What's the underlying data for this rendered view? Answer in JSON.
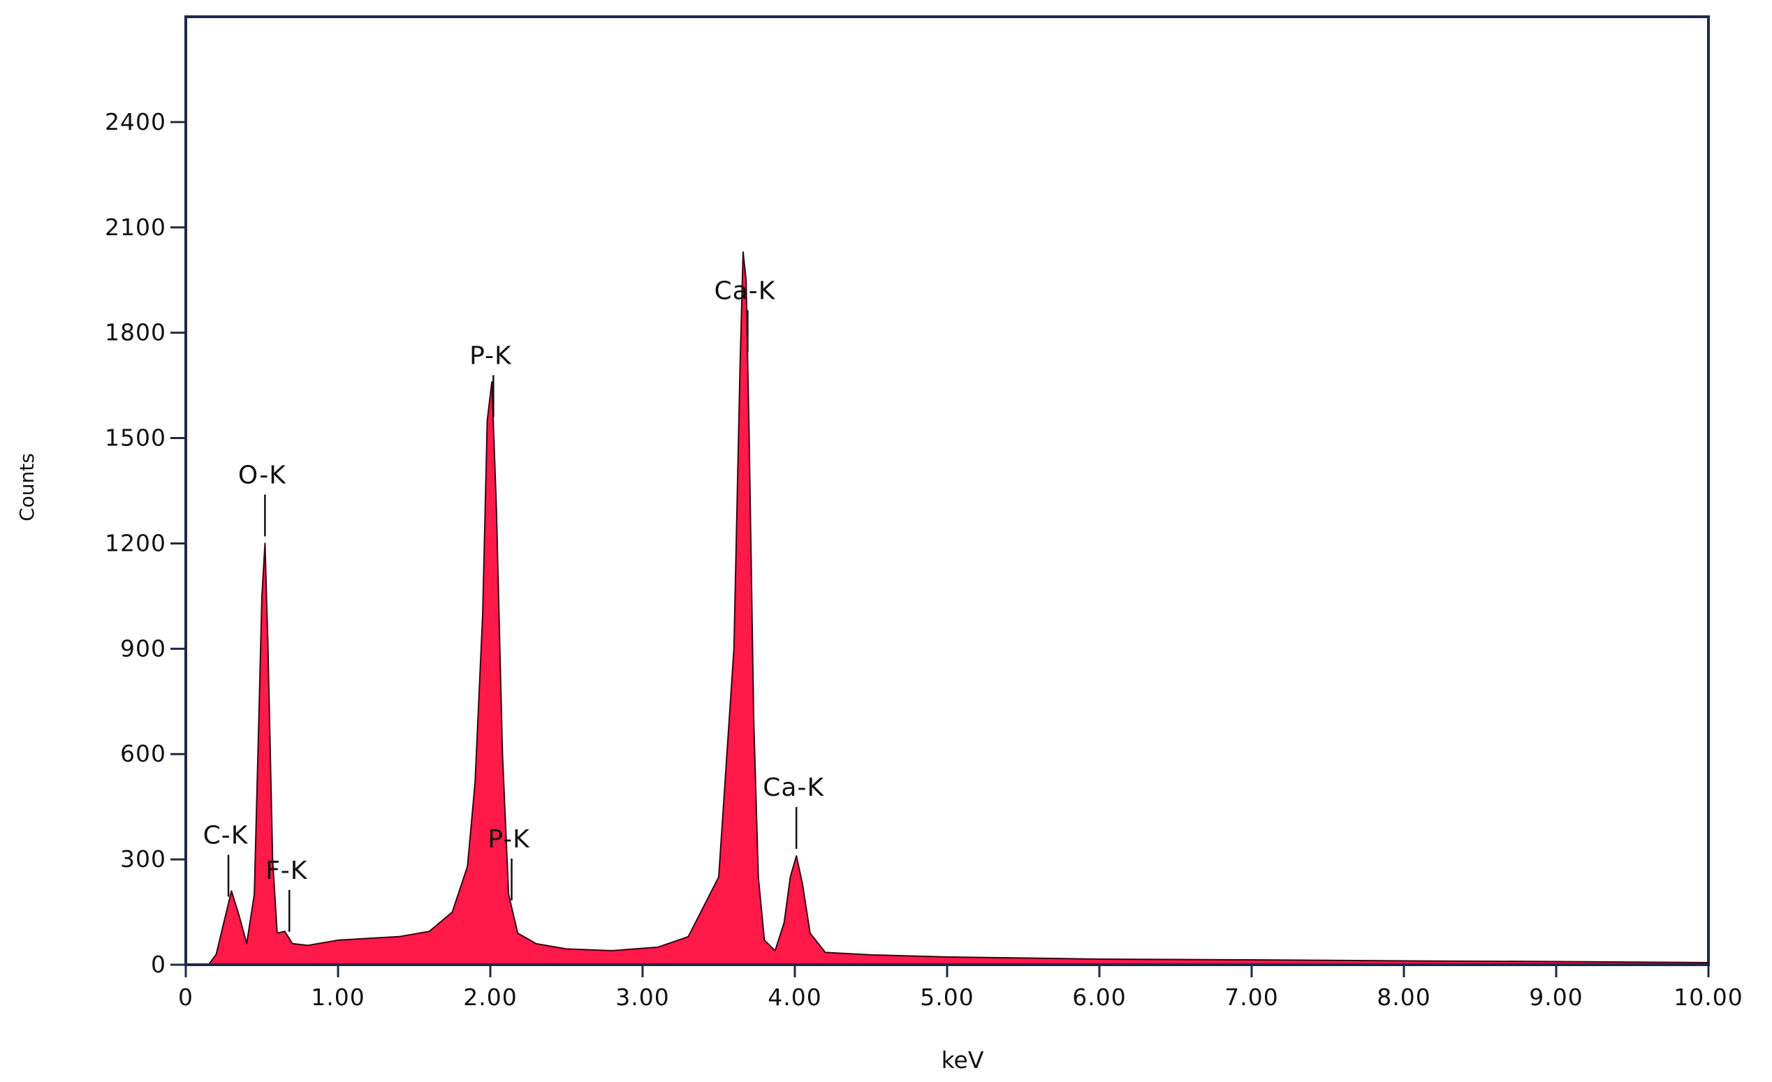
{
  "chart_data": {
    "type": "area",
    "title": "",
    "xlabel": "keV",
    "ylabel": "Counts",
    "xlim": [
      0,
      10
    ],
    "ylim": [
      0,
      2700
    ],
    "x_ticks": [
      "0",
      "1.00",
      "2.00",
      "3.00",
      "4.00",
      "5.00",
      "6.00",
      "7.00",
      "8.00",
      "9.00",
      "10.00"
    ],
    "y_ticks": [
      "0",
      "300",
      "600",
      "900",
      "1200",
      "1500",
      "1800",
      "2100",
      "2400"
    ],
    "grid": false,
    "legend": "none",
    "series": [
      {
        "color": "#ff1a4a",
        "x": [
          0.15,
          0.2,
          0.25,
          0.3,
          0.35,
          0.4,
          0.45,
          0.48,
          0.5,
          0.52,
          0.54,
          0.57,
          0.6,
          0.65,
          0.7,
          0.8,
          1.0,
          1.2,
          1.4,
          1.6,
          1.75,
          1.85,
          1.9,
          1.95,
          1.98,
          2.01,
          2.04,
          2.08,
          2.12,
          2.18,
          2.3,
          2.5,
          2.8,
          3.1,
          3.3,
          3.5,
          3.6,
          3.64,
          3.66,
          3.68,
          3.7,
          3.73,
          3.76,
          3.8,
          3.87,
          3.93,
          3.97,
          4.01,
          4.05,
          4.1,
          4.2,
          4.5,
          5.0,
          5.5,
          6.0,
          6.5,
          7.0,
          8.0,
          9.0,
          10.0
        ],
        "y": [
          0,
          30,
          120,
          210,
          140,
          60,
          200,
          700,
          1050,
          1200,
          900,
          300,
          90,
          95,
          60,
          55,
          70,
          75,
          80,
          95,
          150,
          280,
          520,
          1000,
          1550,
          1660,
          1300,
          600,
          200,
          90,
          60,
          45,
          40,
          50,
          80,
          250,
          900,
          1700,
          2030,
          1950,
          1500,
          700,
          250,
          70,
          40,
          120,
          250,
          310,
          230,
          90,
          35,
          28,
          22,
          19,
          16,
          15,
          14,
          11,
          9,
          6
        ]
      }
    ],
    "annotations": [
      {
        "label": "C-K",
        "x": 0.28
      },
      {
        "label": "O-K",
        "x": 0.52
      },
      {
        "label": "F-K",
        "x": 0.68
      },
      {
        "label": "P-K",
        "x": 2.02
      },
      {
        "label": "P-K",
        "x": 2.14
      },
      {
        "label": "Ca-K",
        "x": 3.69
      },
      {
        "label": "Ca-K",
        "x": 4.01
      }
    ]
  }
}
